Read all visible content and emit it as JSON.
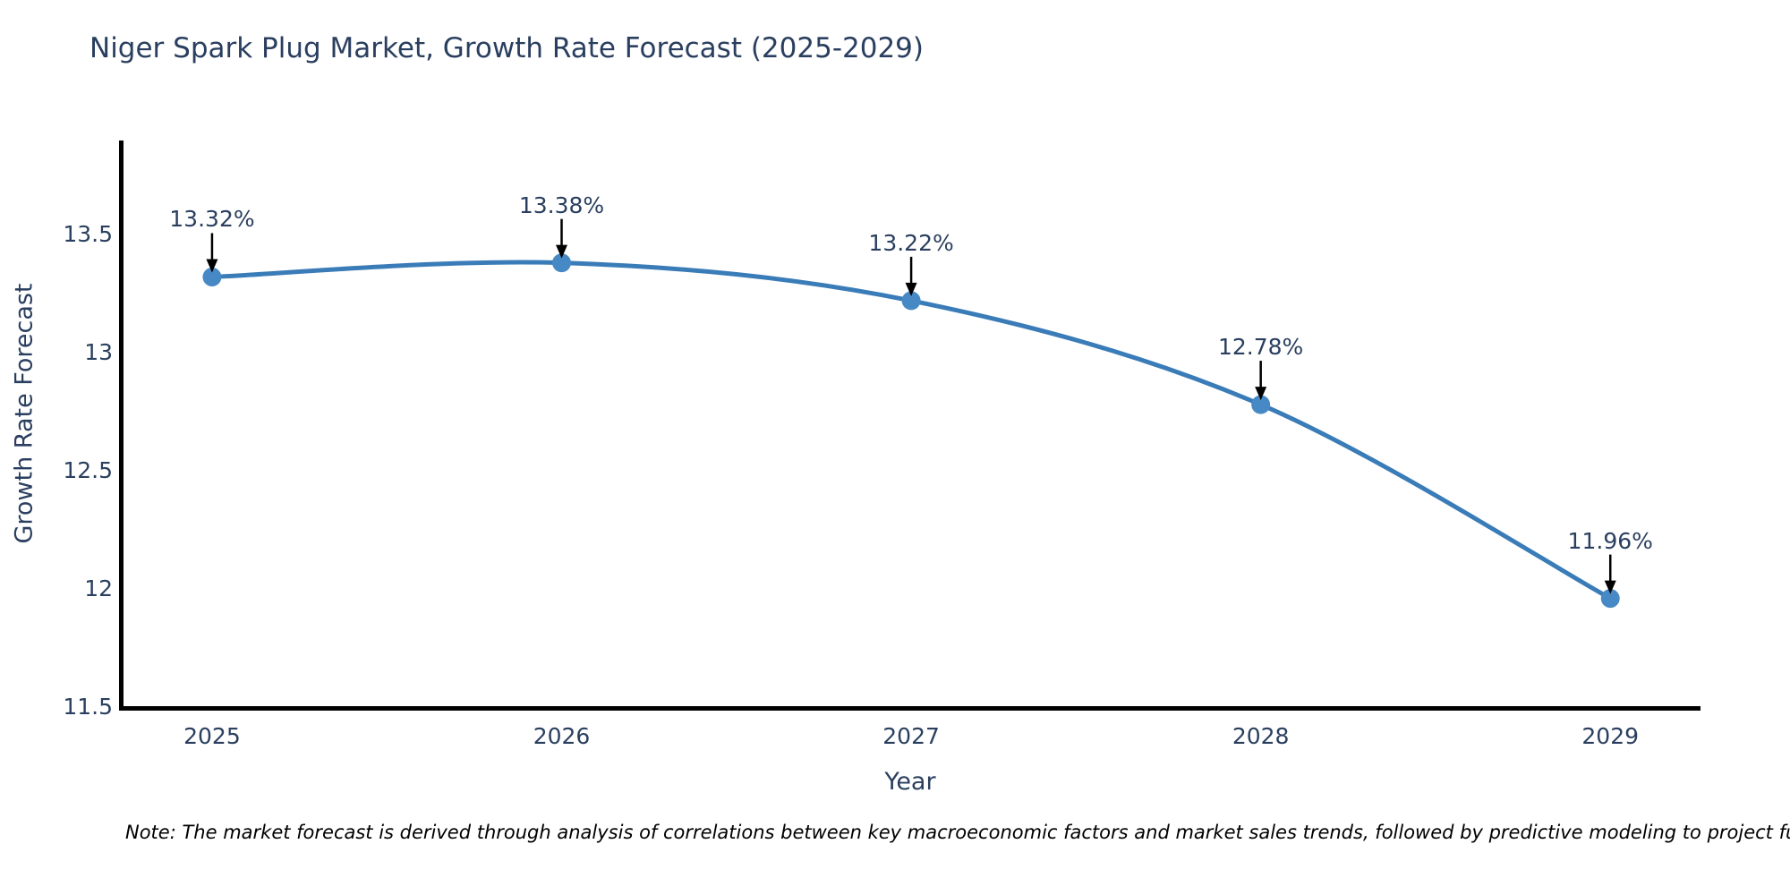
{
  "note": {
    "text": "Note: The market forecast is derived through analysis of correlations between key macroeconomic factors and market sales trends, followed by predictive modeling to project future sales."
  },
  "chart_data": {
    "type": "line",
    "title": "Niger Spark Plug Market, Growth Rate Forecast (2025-2029)",
    "xlabel": "Year",
    "ylabel": "Growth Rate Forecast",
    "x": [
      2025,
      2026,
      2027,
      2028,
      2029
    ],
    "series": [
      {
        "name": "Growth Rate Forecast",
        "values": [
          13.32,
          13.38,
          13.22,
          12.78,
          11.96
        ]
      }
    ],
    "point_labels": [
      "13.32%",
      "13.38%",
      "13.22%",
      "12.78%",
      "11.96%"
    ],
    "xtick_labels": [
      "2025",
      "2026",
      "2027",
      "2028",
      "2029"
    ],
    "ytick_values": [
      11.5,
      12,
      12.5,
      13,
      13.5
    ],
    "ytick_labels": [
      "11.5",
      "12",
      "12.5",
      "13",
      "13.5"
    ],
    "xlim": [
      2024.739,
      2029.258
    ],
    "ylim": [
      11.453,
      13.888
    ],
    "grid": false,
    "legend": "none",
    "line_shape": "spline",
    "colors": {
      "line": "#3a7cb8",
      "marker": "#4689c5",
      "arrow": "#000000",
      "axis": "#000000",
      "text": "#2a3f5f"
    }
  }
}
